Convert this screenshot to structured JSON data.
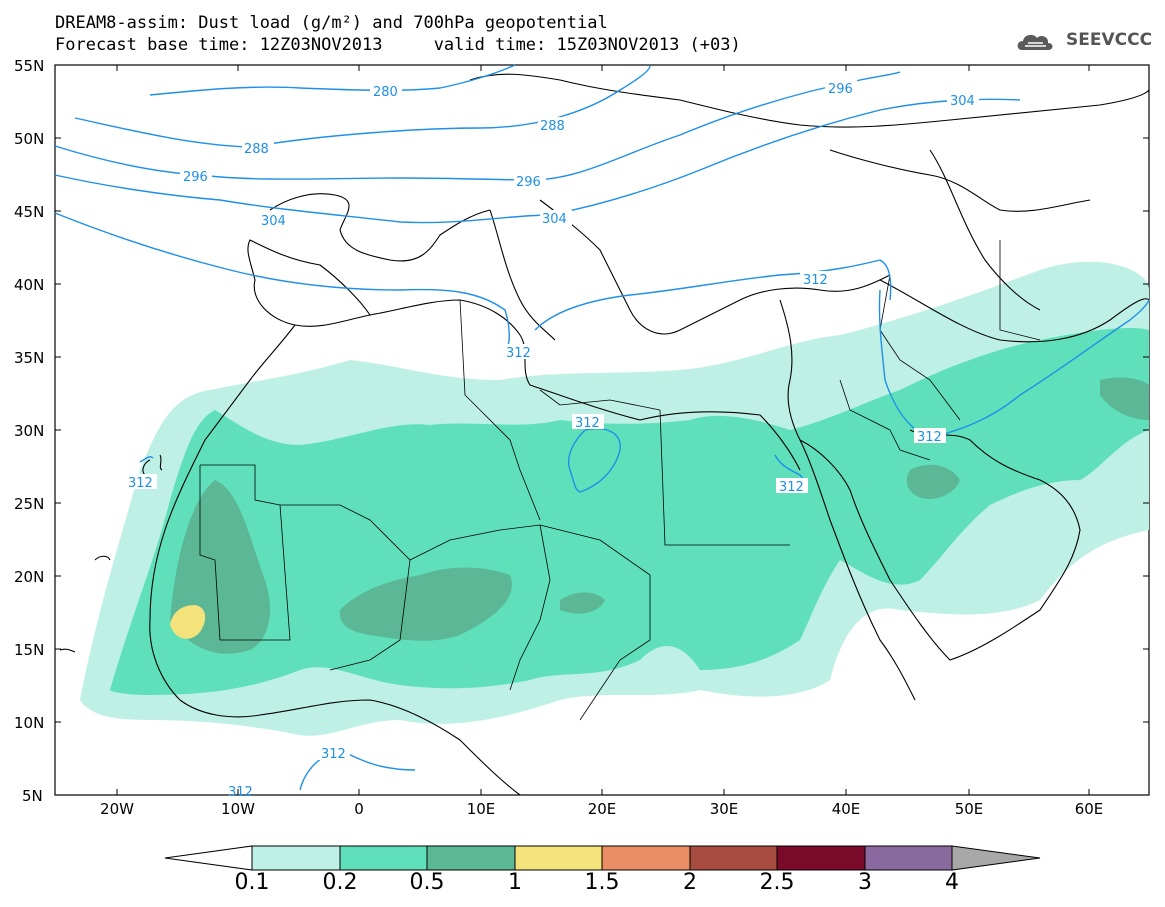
{
  "title_line1": "DREAM8-assim: Dust load (g/m²) and 700hPa geopotential",
  "title_line2": "Forecast base time: 12Z03NOV2013     valid time: 15Z03NOV2013 (+03)",
  "logo_text": "SEEVCCC",
  "lat_labels": [
    "55N",
    "50N",
    "45N",
    "40N",
    "35N",
    "30N",
    "25N",
    "20N",
    "15N",
    "10N",
    "5N"
  ],
  "lon_labels": [
    "20W",
    "10W",
    "0",
    "10E",
    "20E",
    "30E",
    "40E",
    "50E",
    "60E"
  ],
  "contour_labels": [
    "280",
    "288",
    "296",
    "304",
    "312",
    "296",
    "304",
    "288",
    "296",
    "304",
    "312",
    "312",
    "312",
    "312",
    "312",
    "312",
    "312",
    "312"
  ],
  "colorbar": {
    "ticks": [
      "0.1",
      "0.2",
      "0.5",
      "1",
      "1.5",
      "2",
      "2.5",
      "3",
      "4"
    ],
    "colors": [
      "#ffffff",
      "#bff0e6",
      "#5fe0bb",
      "#5bb796",
      "#f4e27a",
      "#e98d64",
      "#a84c41",
      "#7a0a2a",
      "#8a6a9e",
      "#a8a8a8"
    ]
  },
  "line_color": "#1e90e8"
}
